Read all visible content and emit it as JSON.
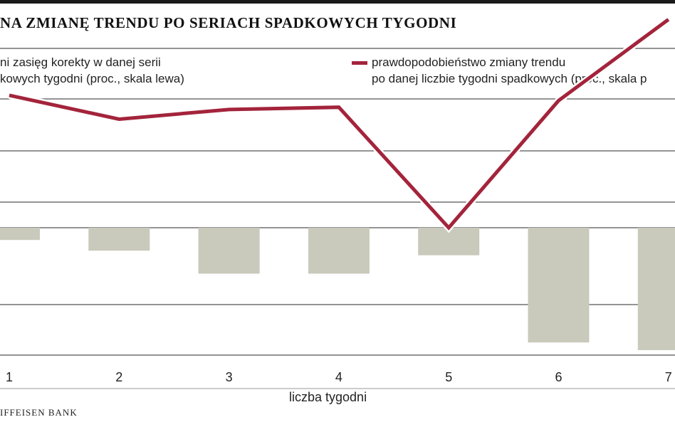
{
  "title": "NA ZMIANĘ TRENDU PO SERIACH SPADKOWYCH TYGODNI",
  "legend": {
    "bars_line1": "ni zasięg korekty w danej serii",
    "bars_line2": "kowych tygodni (proc., skala lewa)",
    "line_line1": "prawdopodobieństwo zmiany trendu",
    "line_line2": "po danej liczbie tygodni spadkowych (proc., skala p"
  },
  "source": "IFFEISEN BANK",
  "colors": {
    "bars": "#c9c9bc",
    "line": "#a3243b",
    "grid": "#555555"
  },
  "chart_data": {
    "type": "bar",
    "categories": [
      "1",
      "2",
      "3",
      "4",
      "5",
      "6",
      "7"
    ],
    "xlabel": "liczba tygodni",
    "series": [
      {
        "type": "bar",
        "axis": "left",
        "values": [
          -0.8,
          -1.5,
          -3.0,
          -3.0,
          -1.8,
          -7.5,
          -8.0
        ]
      },
      {
        "type": "line",
        "axis": "right",
        "values": [
          67.8,
          64.6,
          65.9,
          66.2,
          50.0,
          67.1,
          78.0
        ]
      }
    ]
  }
}
